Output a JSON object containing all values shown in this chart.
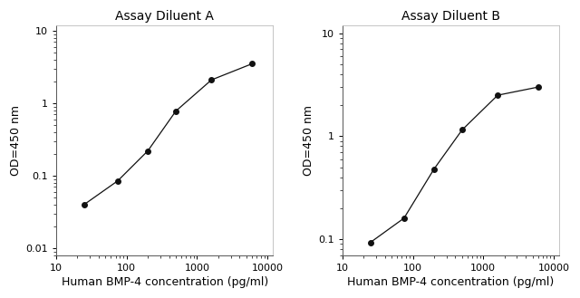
{
  "title_A": "Assay Diluent A",
  "title_B": "Assay Diluent B",
  "xlabel": "Human BMP-4 concentration (pg/ml)",
  "ylabel": "OD=450 nm",
  "x_A": [
    25,
    75,
    200,
    500,
    1600,
    6000
  ],
  "y_A": [
    0.04,
    0.085,
    0.22,
    0.78,
    2.1,
    3.5
  ],
  "x_B": [
    25,
    75,
    200,
    500,
    1600,
    6000
  ],
  "y_B": [
    0.093,
    0.16,
    0.48,
    1.15,
    2.5,
    3.0
  ],
  "xlim_log": [
    15,
    12000
  ],
  "ylim_A_log": [
    0.008,
    12
  ],
  "ylim_B_log": [
    0.07,
    12
  ],
  "yticks_A": [
    0.01,
    0.1,
    1,
    10
  ],
  "yticklabels_A": [
    "0.01",
    "0.1",
    "1",
    "10"
  ],
  "yticks_B": [
    0.1,
    1,
    10
  ],
  "yticklabels_B": [
    "0.1",
    "1",
    "10"
  ],
  "xticks": [
    10,
    100,
    1000,
    10000
  ],
  "xticklabels": [
    "10",
    "100",
    "1000",
    "10000"
  ],
  "line_color": "#111111",
  "marker": "o",
  "markersize": 4,
  "bg_color": "#ffffff",
  "title_fontsize": 10,
  "label_fontsize": 9,
  "tick_fontsize": 8
}
